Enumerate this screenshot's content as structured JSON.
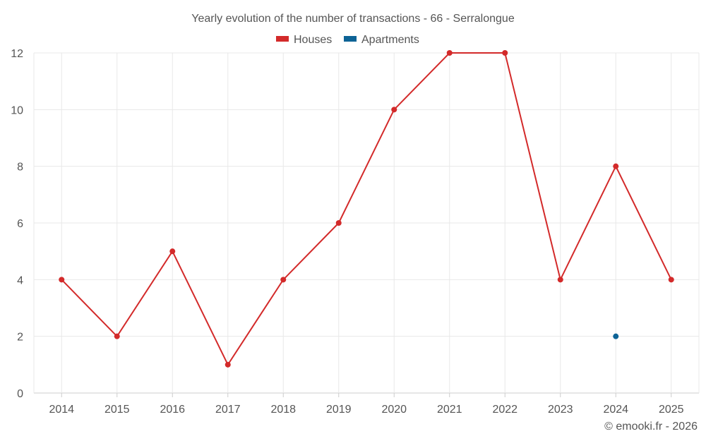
{
  "chart_data": {
    "type": "line",
    "title": "Yearly evolution of the number of transactions - 66 - Serralongue",
    "categories": [
      "2014",
      "2015",
      "2016",
      "2017",
      "2018",
      "2019",
      "2020",
      "2021",
      "2022",
      "2023",
      "2024",
      "2025"
    ],
    "series": [
      {
        "name": "Houses",
        "color": "#d32a2a",
        "values": [
          4,
          2,
          5,
          1,
          4,
          6,
          10,
          12,
          12,
          4,
          8,
          4
        ]
      },
      {
        "name": "Apartments",
        "color": "#0d6396",
        "values": [
          null,
          null,
          null,
          null,
          null,
          null,
          null,
          null,
          null,
          null,
          2,
          null
        ]
      }
    ],
    "ylim": [
      0,
      12
    ],
    "yticks": [
      0,
      2,
      4,
      6,
      8,
      10,
      12
    ],
    "grid": true,
    "legend_position": "top-center"
  },
  "credit": "© emooki.fr - 2026"
}
